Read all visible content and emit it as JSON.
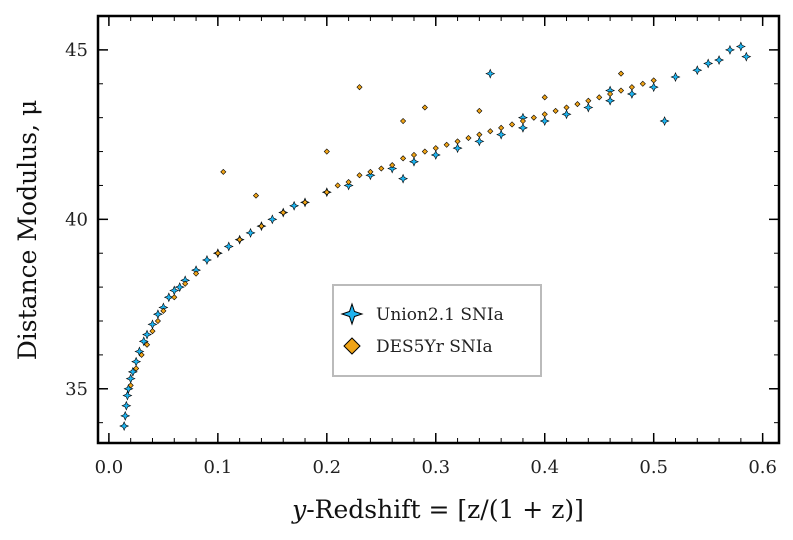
{
  "chart_data": {
    "type": "scatter",
    "title": "",
    "xlabel": "y-Redshift = [z/(1 + z)]",
    "xlabel_parts": {
      "var": "y",
      "rest": "-Redshift  =  [z/(1 + z)]"
    },
    "ylabel": "Distance Modulus, μ",
    "xlim": [
      -0.01,
      0.615
    ],
    "ylim": [
      33.4,
      46.0
    ],
    "xticks": [
      0.0,
      0.1,
      0.2,
      0.3,
      0.4,
      0.5,
      0.6
    ],
    "xtick_labels": [
      "0.0",
      "0.1",
      "0.2",
      "0.3",
      "0.4",
      "0.5",
      "0.6"
    ],
    "yticks": [
      35,
      40,
      45
    ],
    "ytick_labels": [
      "35",
      "40",
      "45"
    ],
    "grid": false,
    "legend_position": "center",
    "series": [
      {
        "name": "Union2.1 SNIa",
        "marker": "star4",
        "color": "#1fb4f0",
        "edge_color": "#000000",
        "x": [
          0.014,
          0.015,
          0.016,
          0.017,
          0.018,
          0.02,
          0.022,
          0.025,
          0.028,
          0.032,
          0.035,
          0.04,
          0.045,
          0.05,
          0.055,
          0.06,
          0.065,
          0.07,
          0.08,
          0.09,
          0.1,
          0.11,
          0.12,
          0.13,
          0.14,
          0.15,
          0.16,
          0.17,
          0.18,
          0.2,
          0.22,
          0.24,
          0.26,
          0.28,
          0.3,
          0.32,
          0.34,
          0.36,
          0.38,
          0.4,
          0.42,
          0.44,
          0.46,
          0.48,
          0.5,
          0.52,
          0.54,
          0.55,
          0.56,
          0.57,
          0.58,
          0.585,
          0.35,
          0.38,
          0.27,
          0.51,
          0.46
        ],
        "y": [
          33.9,
          34.2,
          34.5,
          34.8,
          35.0,
          35.3,
          35.5,
          35.8,
          36.1,
          36.4,
          36.6,
          36.9,
          37.2,
          37.4,
          37.7,
          37.9,
          38.0,
          38.2,
          38.5,
          38.8,
          39.0,
          39.2,
          39.4,
          39.6,
          39.8,
          40.0,
          40.2,
          40.4,
          40.5,
          40.8,
          41.0,
          41.3,
          41.5,
          41.7,
          41.9,
          42.1,
          42.3,
          42.5,
          42.7,
          42.9,
          43.1,
          43.3,
          43.5,
          43.7,
          43.9,
          44.2,
          44.4,
          44.6,
          44.7,
          45.0,
          45.1,
          44.8,
          44.3,
          43.0,
          41.2,
          42.9,
          43.8
        ]
      },
      {
        "name": "DES5Yr SNIa",
        "marker": "diamond",
        "color": "#f0a417",
        "edge_color": "#000000",
        "x": [
          0.02,
          0.025,
          0.03,
          0.035,
          0.04,
          0.045,
          0.05,
          0.06,
          0.07,
          0.08,
          0.1,
          0.12,
          0.14,
          0.16,
          0.18,
          0.2,
          0.21,
          0.22,
          0.23,
          0.24,
          0.25,
          0.26,
          0.27,
          0.28,
          0.29,
          0.3,
          0.31,
          0.32,
          0.33,
          0.34,
          0.35,
          0.36,
          0.37,
          0.38,
          0.39,
          0.4,
          0.41,
          0.42,
          0.43,
          0.44,
          0.45,
          0.46,
          0.47,
          0.48,
          0.49,
          0.5,
          0.105,
          0.135,
          0.2,
          0.23,
          0.27,
          0.29,
          0.34,
          0.4,
          0.47
        ],
        "y": [
          35.1,
          35.6,
          36.0,
          36.3,
          36.7,
          37.0,
          37.3,
          37.7,
          38.1,
          38.4,
          39.0,
          39.4,
          39.8,
          40.2,
          40.5,
          40.8,
          41.0,
          41.1,
          41.3,
          41.4,
          41.5,
          41.6,
          41.8,
          41.9,
          42.0,
          42.1,
          42.2,
          42.3,
          42.4,
          42.5,
          42.6,
          42.7,
          42.8,
          42.9,
          43.0,
          43.1,
          43.2,
          43.3,
          43.4,
          43.5,
          43.6,
          43.7,
          43.8,
          43.9,
          44.0,
          44.1,
          41.4,
          40.7,
          42.0,
          43.9,
          42.9,
          43.3,
          43.2,
          43.6,
          44.3
        ]
      }
    ]
  }
}
